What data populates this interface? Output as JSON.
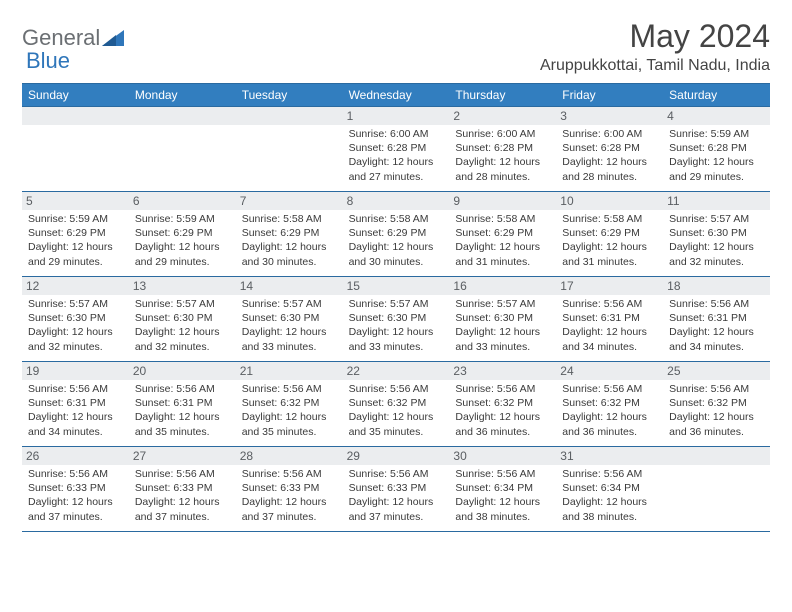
{
  "brand": {
    "part1": "General",
    "part2": "Blue"
  },
  "title": "May 2024",
  "location": "Aruppukkottai, Tamil Nadu, India",
  "colors": {
    "header_bg": "#327ebf",
    "header_border": "#2a6aa0",
    "daynum_bg": "#ebedef",
    "text": "#333333",
    "brand_gray": "#6b6f73",
    "brand_blue": "#2f76ba"
  },
  "day_names": [
    "Sunday",
    "Monday",
    "Tuesday",
    "Wednesday",
    "Thursday",
    "Friday",
    "Saturday"
  ],
  "weeks": [
    [
      {
        "day": "",
        "sunrise": "",
        "sunset": "",
        "daylight": ""
      },
      {
        "day": "",
        "sunrise": "",
        "sunset": "",
        "daylight": ""
      },
      {
        "day": "",
        "sunrise": "",
        "sunset": "",
        "daylight": ""
      },
      {
        "day": "1",
        "sunrise": "Sunrise: 6:00 AM",
        "sunset": "Sunset: 6:28 PM",
        "daylight": "Daylight: 12 hours and 27 minutes."
      },
      {
        "day": "2",
        "sunrise": "Sunrise: 6:00 AM",
        "sunset": "Sunset: 6:28 PM",
        "daylight": "Daylight: 12 hours and 28 minutes."
      },
      {
        "day": "3",
        "sunrise": "Sunrise: 6:00 AM",
        "sunset": "Sunset: 6:28 PM",
        "daylight": "Daylight: 12 hours and 28 minutes."
      },
      {
        "day": "4",
        "sunrise": "Sunrise: 5:59 AM",
        "sunset": "Sunset: 6:28 PM",
        "daylight": "Daylight: 12 hours and 29 minutes."
      }
    ],
    [
      {
        "day": "5",
        "sunrise": "Sunrise: 5:59 AM",
        "sunset": "Sunset: 6:29 PM",
        "daylight": "Daylight: 12 hours and 29 minutes."
      },
      {
        "day": "6",
        "sunrise": "Sunrise: 5:59 AM",
        "sunset": "Sunset: 6:29 PM",
        "daylight": "Daylight: 12 hours and 29 minutes."
      },
      {
        "day": "7",
        "sunrise": "Sunrise: 5:58 AM",
        "sunset": "Sunset: 6:29 PM",
        "daylight": "Daylight: 12 hours and 30 minutes."
      },
      {
        "day": "8",
        "sunrise": "Sunrise: 5:58 AM",
        "sunset": "Sunset: 6:29 PM",
        "daylight": "Daylight: 12 hours and 30 minutes."
      },
      {
        "day": "9",
        "sunrise": "Sunrise: 5:58 AM",
        "sunset": "Sunset: 6:29 PM",
        "daylight": "Daylight: 12 hours and 31 minutes."
      },
      {
        "day": "10",
        "sunrise": "Sunrise: 5:58 AM",
        "sunset": "Sunset: 6:29 PM",
        "daylight": "Daylight: 12 hours and 31 minutes."
      },
      {
        "day": "11",
        "sunrise": "Sunrise: 5:57 AM",
        "sunset": "Sunset: 6:30 PM",
        "daylight": "Daylight: 12 hours and 32 minutes."
      }
    ],
    [
      {
        "day": "12",
        "sunrise": "Sunrise: 5:57 AM",
        "sunset": "Sunset: 6:30 PM",
        "daylight": "Daylight: 12 hours and 32 minutes."
      },
      {
        "day": "13",
        "sunrise": "Sunrise: 5:57 AM",
        "sunset": "Sunset: 6:30 PM",
        "daylight": "Daylight: 12 hours and 32 minutes."
      },
      {
        "day": "14",
        "sunrise": "Sunrise: 5:57 AM",
        "sunset": "Sunset: 6:30 PM",
        "daylight": "Daylight: 12 hours and 33 minutes."
      },
      {
        "day": "15",
        "sunrise": "Sunrise: 5:57 AM",
        "sunset": "Sunset: 6:30 PM",
        "daylight": "Daylight: 12 hours and 33 minutes."
      },
      {
        "day": "16",
        "sunrise": "Sunrise: 5:57 AM",
        "sunset": "Sunset: 6:30 PM",
        "daylight": "Daylight: 12 hours and 33 minutes."
      },
      {
        "day": "17",
        "sunrise": "Sunrise: 5:56 AM",
        "sunset": "Sunset: 6:31 PM",
        "daylight": "Daylight: 12 hours and 34 minutes."
      },
      {
        "day": "18",
        "sunrise": "Sunrise: 5:56 AM",
        "sunset": "Sunset: 6:31 PM",
        "daylight": "Daylight: 12 hours and 34 minutes."
      }
    ],
    [
      {
        "day": "19",
        "sunrise": "Sunrise: 5:56 AM",
        "sunset": "Sunset: 6:31 PM",
        "daylight": "Daylight: 12 hours and 34 minutes."
      },
      {
        "day": "20",
        "sunrise": "Sunrise: 5:56 AM",
        "sunset": "Sunset: 6:31 PM",
        "daylight": "Daylight: 12 hours and 35 minutes."
      },
      {
        "day": "21",
        "sunrise": "Sunrise: 5:56 AM",
        "sunset": "Sunset: 6:32 PM",
        "daylight": "Daylight: 12 hours and 35 minutes."
      },
      {
        "day": "22",
        "sunrise": "Sunrise: 5:56 AM",
        "sunset": "Sunset: 6:32 PM",
        "daylight": "Daylight: 12 hours and 35 minutes."
      },
      {
        "day": "23",
        "sunrise": "Sunrise: 5:56 AM",
        "sunset": "Sunset: 6:32 PM",
        "daylight": "Daylight: 12 hours and 36 minutes."
      },
      {
        "day": "24",
        "sunrise": "Sunrise: 5:56 AM",
        "sunset": "Sunset: 6:32 PM",
        "daylight": "Daylight: 12 hours and 36 minutes."
      },
      {
        "day": "25",
        "sunrise": "Sunrise: 5:56 AM",
        "sunset": "Sunset: 6:32 PM",
        "daylight": "Daylight: 12 hours and 36 minutes."
      }
    ],
    [
      {
        "day": "26",
        "sunrise": "Sunrise: 5:56 AM",
        "sunset": "Sunset: 6:33 PM",
        "daylight": "Daylight: 12 hours and 37 minutes."
      },
      {
        "day": "27",
        "sunrise": "Sunrise: 5:56 AM",
        "sunset": "Sunset: 6:33 PM",
        "daylight": "Daylight: 12 hours and 37 minutes."
      },
      {
        "day": "28",
        "sunrise": "Sunrise: 5:56 AM",
        "sunset": "Sunset: 6:33 PM",
        "daylight": "Daylight: 12 hours and 37 minutes."
      },
      {
        "day": "29",
        "sunrise": "Sunrise: 5:56 AM",
        "sunset": "Sunset: 6:33 PM",
        "daylight": "Daylight: 12 hours and 37 minutes."
      },
      {
        "day": "30",
        "sunrise": "Sunrise: 5:56 AM",
        "sunset": "Sunset: 6:34 PM",
        "daylight": "Daylight: 12 hours and 38 minutes."
      },
      {
        "day": "31",
        "sunrise": "Sunrise: 5:56 AM",
        "sunset": "Sunset: 6:34 PM",
        "daylight": "Daylight: 12 hours and 38 minutes."
      },
      {
        "day": "",
        "sunrise": "",
        "sunset": "",
        "daylight": ""
      }
    ]
  ]
}
